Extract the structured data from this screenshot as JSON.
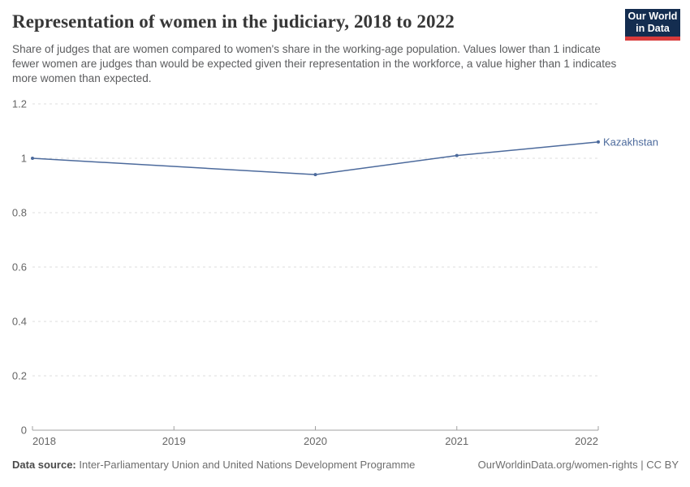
{
  "header": {
    "title": "Representation of women in the judiciary, 2018 to 2022",
    "subtitle": "Share of judges that are women compared to women's share in the working-age population. Values lower than 1 indicate fewer women are judges than would be expected given their representation in the workforce, a value higher than 1 indicates more women than expected.",
    "logo": {
      "line1": "Our World",
      "line2": "in Data"
    }
  },
  "chart_data": {
    "type": "line",
    "title": "Representation of women in the judiciary, 2018 to 2022",
    "xlabel": "",
    "ylabel": "",
    "xlim": [
      2018,
      2022
    ],
    "ylim": [
      0,
      1.2
    ],
    "x_ticks": [
      2018,
      2019,
      2020,
      2021,
      2022
    ],
    "x_tick_labels": [
      "2018",
      "2019",
      "2020",
      "2021",
      "2022"
    ],
    "y_ticks": [
      0,
      0.2,
      0.4,
      0.6,
      0.8,
      1,
      1.2
    ],
    "y_tick_labels": [
      "0",
      "0.2",
      "0.4",
      "0.6",
      "0.8",
      "1",
      "1.2"
    ],
    "grid": "horizontal-dashed",
    "legend_position": "line-end-label",
    "series": [
      {
        "name": "Kazakhstan",
        "color": "#4C6A9C",
        "points": [
          {
            "x": 2018,
            "y": 1.0
          },
          {
            "x": 2020,
            "y": 0.94
          },
          {
            "x": 2021,
            "y": 1.01
          },
          {
            "x": 2022,
            "y": 1.06
          }
        ]
      }
    ]
  },
  "footer": {
    "source_label": "Data source:",
    "source_text": "Inter-Parliamentary Union and United Nations Development Programme",
    "credit": "OurWorldinData.org/women-rights | CC BY"
  },
  "colors": {
    "series_blue": "#4C6A9C",
    "logo_navy": "#142d50",
    "logo_red": "#d93b3b",
    "gridline": "#dedede",
    "axis": "#a1a1a1",
    "title_text": "#373737",
    "body_text": "#5b5c5e"
  }
}
